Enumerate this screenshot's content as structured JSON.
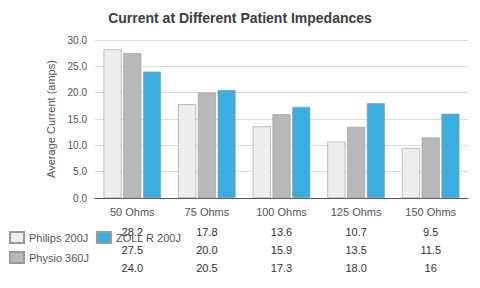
{
  "chart_data": {
    "type": "bar",
    "title": "Current at Different Patient Impedances",
    "ylabel": "Average Current (amps)",
    "categories": [
      "50 Ohms",
      "75 Ohms",
      "100 Ohms",
      "125 Ohms",
      "150 Ohms"
    ],
    "series": [
      {
        "name": "Philips 200J",
        "color": "#eeeeee",
        "values": [
          28.2,
          17.8,
          13.6,
          10.7,
          9.5
        ],
        "value_labels": [
          "28.2",
          "17.8",
          "13.6",
          "10.7",
          "9.5"
        ]
      },
      {
        "name": "Physio 360J",
        "color": "#b8b8b8",
        "values": [
          27.5,
          20.0,
          15.9,
          13.5,
          11.5
        ],
        "value_labels": [
          "27.5",
          "20.0",
          "15.9",
          "13.5",
          "11.5"
        ]
      },
      {
        "name": "ZOLL R 200J",
        "color": "#3aaee0",
        "values": [
          24.0,
          20.5,
          17.3,
          18.0,
          16.0
        ],
        "value_labels": [
          "24.0",
          "20.5",
          "17.3",
          "18.0",
          "16"
        ]
      }
    ],
    "ylim": [
      0,
      30
    ],
    "yticks": [
      {
        "value": 0,
        "label": "0.0"
      },
      {
        "value": 5,
        "label": "5.0"
      },
      {
        "value": 10,
        "label": "10.0"
      },
      {
        "value": 15,
        "label": "15.0"
      },
      {
        "value": 20,
        "label": "20.0"
      },
      {
        "value": 25,
        "label": "25.0"
      },
      {
        "value": 30,
        "label": "30.0"
      }
    ],
    "grid": true,
    "legend": "bottom left"
  }
}
